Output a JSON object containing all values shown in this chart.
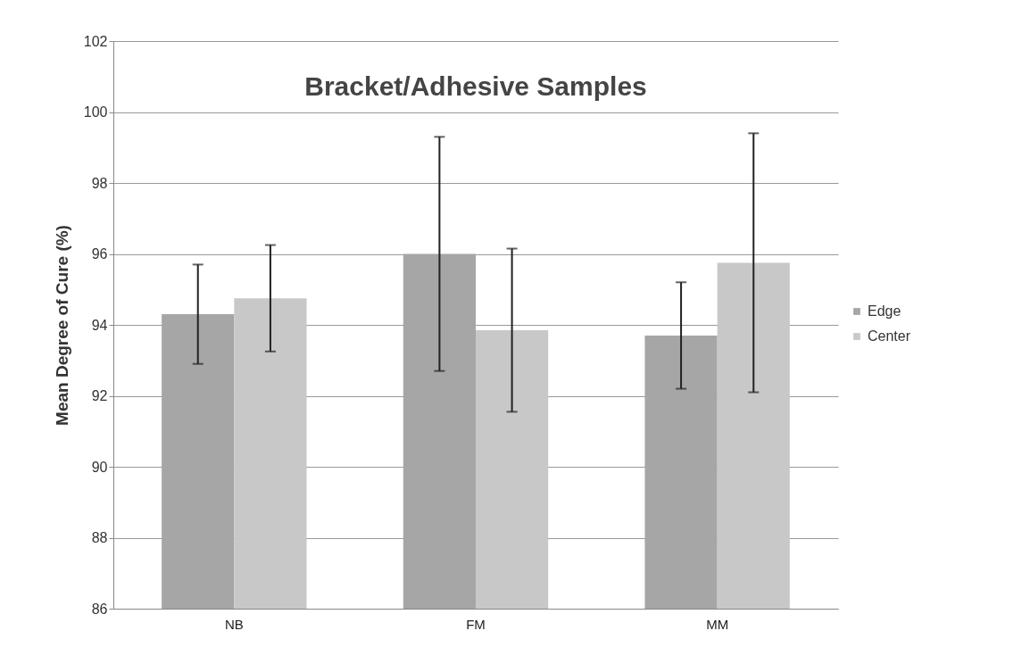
{
  "chart_data": {
    "type": "bar",
    "title": "Bracket/Adhesive Samples",
    "ylabel": "Mean Degree of Cure (%)",
    "categories": [
      "NB",
      "FM",
      "MM"
    ],
    "series": [
      {
        "name": "Edge",
        "color": "#a6a6a6",
        "values": [
          94.3,
          96.0,
          93.7
        ],
        "errors": [
          1.4,
          3.3,
          1.5
        ]
      },
      {
        "name": "Center",
        "color": "#c8c8c8",
        "values": [
          94.75,
          93.85,
          95.75
        ],
        "errors": [
          1.5,
          2.3,
          3.65
        ]
      }
    ],
    "ylim": [
      86,
      102
    ],
    "yticks": [
      86,
      88,
      90,
      92,
      94,
      96,
      98,
      100,
      102
    ],
    "grid": "y",
    "legend": "right"
  }
}
